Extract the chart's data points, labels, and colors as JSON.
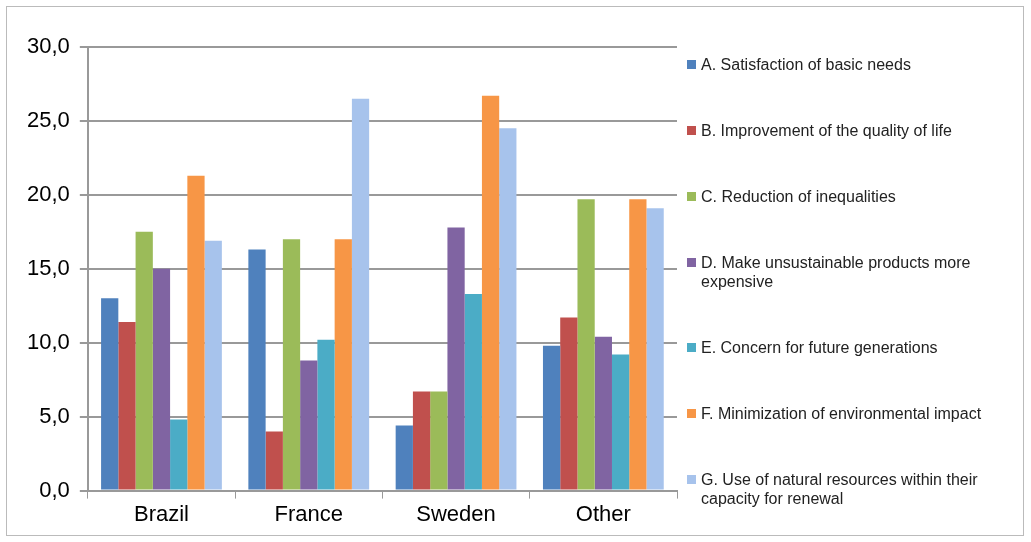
{
  "chart_data": {
    "type": "bar",
    "categories": [
      "Brazil",
      "France",
      "Sweden",
      "Other"
    ],
    "series": [
      {
        "name": "A. Satisfaction of basic needs",
        "color": "#4f81bd",
        "values": [
          13.0,
          16.3,
          4.4,
          9.8
        ]
      },
      {
        "name": "B. Improvement of the quality of life",
        "color": "#c0504d",
        "values": [
          11.4,
          4.0,
          6.7,
          11.7
        ]
      },
      {
        "name": "C. Reduction of inequalities",
        "color": "#9bbb59",
        "values": [
          17.5,
          17.0,
          6.7,
          19.7
        ]
      },
      {
        "name": "D. Make unsustainable products more expensive",
        "color": "#8064a2",
        "values": [
          15.0,
          8.8,
          17.8,
          10.4
        ]
      },
      {
        "name": "E. Concern for future generations",
        "color": "#4bacc6",
        "values": [
          4.8,
          10.2,
          13.3,
          9.2
        ]
      },
      {
        "name": "F. Minimization of environmental impact",
        "color": "#f79646",
        "values": [
          21.3,
          17.0,
          26.7,
          19.7
        ]
      },
      {
        "name": "G. Use of natural resources within their capacity for renewal",
        "color": "#a7c3ec",
        "values": [
          16.9,
          26.5,
          24.5,
          19.1
        ]
      }
    ],
    "ylim": [
      0,
      30
    ],
    "yticks": [
      {
        "value": 0,
        "label": "0,0"
      },
      {
        "value": 5,
        "label": "5,0"
      },
      {
        "value": 10,
        "label": "10,0"
      },
      {
        "value": 15,
        "label": "15,0"
      },
      {
        "value": 20,
        "label": "20,0"
      },
      {
        "value": 25,
        "label": "25,0"
      },
      {
        "value": 30,
        "label": "30,0"
      }
    ],
    "grid": "y",
    "legend": "right"
  }
}
